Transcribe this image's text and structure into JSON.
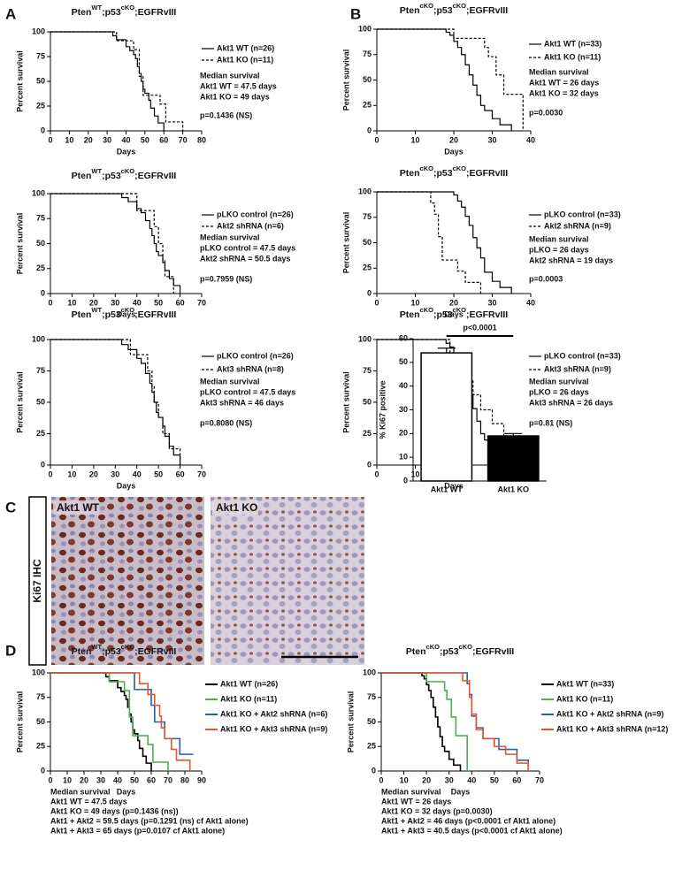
{
  "panels": [
    "A",
    "B",
    "C",
    "D"
  ],
  "images": {
    "stain": "Ki67 IHC",
    "labels": [
      "Akt1 WT",
      "Akt1 KO"
    ]
  },
  "chart_data": [
    {
      "type": "survival",
      "title_parts": [
        "Pten",
        "WT",
        ";p53",
        "cKO",
        ";EGFRvIII"
      ],
      "xlabel": "Days",
      "ylabel": "Percent survival",
      "xlim": [
        0,
        80
      ],
      "xticks": [
        0,
        10,
        20,
        30,
        40,
        50,
        60,
        70,
        80
      ],
      "ylim": [
        0,
        100
      ],
      "yticks": [
        0,
        25,
        50,
        75,
        100
      ],
      "series": [
        {
          "name": "Akt1 WT (n=26)",
          "color": "#000000",
          "dash": false,
          "x": [
            0,
            33,
            35,
            40,
            42,
            44,
            45,
            46,
            47,
            48,
            49,
            50,
            52,
            53,
            55,
            57,
            60
          ],
          "values": [
            100,
            96,
            92,
            85,
            81,
            77,
            73,
            65,
            58,
            50,
            42,
            38,
            31,
            23,
            15,
            8,
            0
          ]
        },
        {
          "name": "Akt1 KO (n=11)",
          "color": "#000000",
          "dash": true,
          "x": [
            0,
            35,
            44,
            47,
            49,
            58,
            61,
            70
          ],
          "values": [
            100,
            91,
            82,
            55,
            36,
            27,
            9,
            0
          ]
        }
      ],
      "annotations": [
        "Median survival",
        "Akt1 WT = 47.5 days",
        "Akt1 KO = 49 days"
      ],
      "p_value": "p=0.1436 (NS)"
    },
    {
      "type": "survival",
      "title_parts": [
        "Pten",
        "WT",
        ";p53",
        "cKO",
        ";EGFRvIII"
      ],
      "xlabel": "Days",
      "ylabel": "Percent survival",
      "xlim": [
        0,
        70
      ],
      "xticks": [
        0,
        10,
        20,
        30,
        40,
        50,
        60,
        70
      ],
      "ylim": [
        0,
        100
      ],
      "yticks": [
        0,
        25,
        50,
        75,
        100
      ],
      "series": [
        {
          "name": "pLKO control (n=26)",
          "color": "#000000",
          "dash": false,
          "x": [
            0,
            33,
            36,
            40,
            42,
            44,
            46,
            47,
            48,
            49,
            50,
            52,
            53,
            55,
            57,
            60
          ],
          "values": [
            100,
            96,
            92,
            85,
            81,
            73,
            65,
            58,
            50,
            42,
            38,
            31,
            23,
            15,
            8,
            0
          ]
        },
        {
          "name": "Akt2 shRNA (n=6)",
          "color": "#000000",
          "dash": true,
          "x": [
            0,
            40,
            48,
            50,
            52,
            53,
            55,
            57
          ],
          "values": [
            100,
            83,
            67,
            50,
            33,
            17,
            17,
            0
          ]
        }
      ],
      "annotations": [
        "Median survival",
        "pLKO control = 47.5 days",
        "Akt2 shRNA = 50.5 days"
      ],
      "p_value": "p=0.7959 (NS)"
    },
    {
      "type": "survival",
      "title_parts": [
        "Pten",
        "WT",
        ";p53",
        "cKO",
        ";EGFRvIII"
      ],
      "xlabel": "Days",
      "ylabel": "Percent survival",
      "xlim": [
        0,
        70
      ],
      "xticks": [
        0,
        10,
        20,
        30,
        40,
        50,
        60,
        70
      ],
      "ylim": [
        0,
        100
      ],
      "yticks": [
        0,
        25,
        50,
        75,
        100
      ],
      "series": [
        {
          "name": "pLKO control (n=26)",
          "color": "#000000",
          "dash": false,
          "x": [
            0,
            33,
            36,
            40,
            42,
            44,
            46,
            47,
            48,
            49,
            50,
            52,
            53,
            55,
            57,
            60
          ],
          "values": [
            100,
            96,
            92,
            85,
            81,
            73,
            65,
            58,
            50,
            42,
            38,
            31,
            23,
            15,
            8,
            0
          ]
        },
        {
          "name": "Akt3 shRNA (n=8)",
          "color": "#000000",
          "dash": true,
          "x": [
            0,
            37,
            45,
            47,
            48,
            50,
            52,
            55,
            60
          ],
          "values": [
            100,
            88,
            75,
            63,
            50,
            38,
            25,
            13,
            0
          ]
        }
      ],
      "annotations": [
        "Median survival",
        "pLKO control = 47.5 days",
        "Akt3 shRNA = 46 days"
      ],
      "p_value": "p=0.8080 (NS)"
    },
    {
      "type": "survival",
      "title_parts": [
        "Pten",
        "cKO",
        ";p53",
        "cKO",
        ";EGFRvIII"
      ],
      "xlabel": "Days",
      "ylabel": "Percent survival",
      "xlim": [
        0,
        40
      ],
      "xticks": [
        0,
        10,
        20,
        30,
        40
      ],
      "ylim": [
        0,
        100
      ],
      "yticks": [
        0,
        25,
        50,
        75,
        100
      ],
      "series": [
        {
          "name": "Akt1 WT (n=33)",
          "color": "#000000",
          "dash": false,
          "x": [
            0,
            18,
            19,
            20,
            21,
            22,
            23,
            24,
            25,
            26,
            27,
            28,
            30,
            32,
            35
          ],
          "values": [
            100,
            97,
            94,
            88,
            82,
            75,
            65,
            55,
            45,
            35,
            25,
            20,
            12,
            6,
            0
          ]
        },
        {
          "name": "Akt1 KO (n=11)",
          "color": "#000000",
          "dash": true,
          "x": [
            0,
            20,
            28,
            29,
            31,
            33,
            38
          ],
          "values": [
            100,
            91,
            82,
            73,
            55,
            36,
            0
          ]
        }
      ],
      "annotations": [
        "Median survival",
        "Akt1 WT = 26 days",
        "Akt1 KO = 32 days"
      ],
      "p_value": "p=0.0030"
    },
    {
      "type": "survival",
      "title_parts": [
        "Pten",
        "cKO",
        ";p53",
        "cKO",
        ";EGFRvIII"
      ],
      "xlabel": "Days",
      "ylabel": "Percent survival",
      "xlim": [
        0,
        40
      ],
      "xticks": [
        0,
        10,
        20,
        30,
        40
      ],
      "ylim": [
        0,
        100
      ],
      "yticks": [
        0,
        25,
        50,
        75,
        100
      ],
      "series": [
        {
          "name": "pLKO control (n=33)",
          "color": "#000000",
          "dash": false,
          "x": [
            0,
            20,
            21,
            22,
            23,
            24,
            25,
            26,
            27,
            28,
            30,
            32,
            35
          ],
          "values": [
            100,
            97,
            91,
            85,
            76,
            67,
            55,
            45,
            35,
            21,
            12,
            6,
            0
          ]
        },
        {
          "name": "Akt2 shRNA (n=9)",
          "color": "#000000",
          "dash": true,
          "x": [
            0,
            14,
            15,
            16,
            17,
            21,
            23,
            27
          ],
          "values": [
            100,
            89,
            78,
            56,
            33,
            22,
            11,
            0
          ]
        }
      ],
      "annotations": [
        "Median survival",
        "pLKO = 26 days",
        "Akt2 shRNA = 19 days"
      ],
      "p_value": "p=0.0003"
    },
    {
      "type": "survival",
      "title_parts": [
        "Pten",
        "cKO",
        ";p53",
        "cKO",
        ";EGFRvIII"
      ],
      "xlabel": "Days",
      "ylabel": "Percent survival",
      "xlim": [
        0,
        40
      ],
      "xticks": [
        0,
        10,
        20,
        30,
        40
      ],
      "ylim": [
        0,
        100
      ],
      "yticks": [
        0,
        25,
        50,
        75,
        100
      ],
      "series": [
        {
          "name": "pLKO control (n=33)",
          "color": "#000000",
          "dash": false,
          "x": [
            0,
            18,
            19,
            20,
            21,
            22,
            23,
            24,
            25,
            26,
            27,
            28,
            30,
            32,
            35
          ],
          "values": [
            100,
            97,
            94,
            88,
            82,
            75,
            65,
            55,
            45,
            35,
            25,
            20,
            12,
            6,
            0
          ]
        },
        {
          "name": "Akt3 shRNA (n=9)",
          "color": "#000000",
          "dash": true,
          "x": [
            0,
            19,
            21,
            24,
            25,
            27,
            30,
            33,
            34
          ],
          "values": [
            100,
            89,
            78,
            67,
            56,
            44,
            33,
            22,
            0
          ]
        }
      ],
      "annotations": [
        "Median survival",
        "pLKO = 26 days",
        "Akt3 shRNA = 26 days"
      ],
      "p_value": "p=0.81 (NS)"
    },
    {
      "type": "bar",
      "ylabel": "% Ki67 positive",
      "categories": [
        "Akt1 WT",
        "Akt1 KO"
      ],
      "values": [
        54,
        19
      ],
      "errors": [
        2,
        1
      ],
      "colors": [
        "#ffffff",
        "#000000"
      ],
      "ylim": [
        0,
        60
      ],
      "yticks": [
        0,
        10,
        20,
        30,
        40,
        50,
        60
      ],
      "annotation": "p<0.0001"
    },
    {
      "type": "survival",
      "title_parts": [
        "Pten",
        "WT",
        ";p53",
        "cKO",
        ";EGFRvIII"
      ],
      "xlabel": "Days",
      "ylabel": "Percent survival",
      "xlim": [
        0,
        90
      ],
      "xticks": [
        0,
        10,
        20,
        30,
        40,
        50,
        60,
        70,
        80,
        90
      ],
      "ylim": [
        0,
        100
      ],
      "yticks": [
        0,
        25,
        50,
        75,
        100
      ],
      "series": [
        {
          "name": "Akt1 WT (n=26)",
          "color": "#000000",
          "dash": false,
          "x": [
            0,
            33,
            35,
            40,
            42,
            44,
            45,
            46,
            47,
            48,
            49,
            50,
            52,
            53,
            55,
            57,
            60
          ],
          "values": [
            100,
            96,
            92,
            85,
            81,
            77,
            73,
            65,
            58,
            50,
            42,
            38,
            31,
            23,
            15,
            8,
            0
          ]
        },
        {
          "name": "Akt1 KO (n=11)",
          "color": "#4caf50",
          "dash": false,
          "x": [
            0,
            35,
            44,
            47,
            49,
            58,
            61,
            70
          ],
          "values": [
            100,
            91,
            82,
            55,
            36,
            27,
            9,
            0
          ]
        },
        {
          "name": "Akt1 KO + Akt2 shRNA (n=6)",
          "color": "#2a5db0",
          "dash": false,
          "x": [
            0,
            50,
            60,
            62,
            68,
            77,
            85
          ],
          "values": [
            100,
            83,
            67,
            50,
            33,
            17,
            17
          ]
        },
        {
          "name": "Akt1 KO + Akt3 shRNA (n=9)",
          "color": "#e8542b",
          "dash": false,
          "x": [
            0,
            53,
            58,
            62,
            65,
            66,
            68,
            72,
            75,
            83
          ],
          "values": [
            100,
            89,
            78,
            67,
            56,
            44,
            33,
            22,
            11,
            0
          ]
        }
      ],
      "annotations": [
        "Median survival",
        "Akt1 WT = 47.5 days",
        "Akt1 KO = 49 days (p=0.1436 (ns))",
        "Akt1 + Akt2 = 59.5 days (p=0.1291 (ns) cf Akt1 alone)",
        "Akt1 + Akt3 = 65 days (p=0.0107 cf Akt1 alone)"
      ]
    },
    {
      "type": "survival",
      "title_parts": [
        "Pten",
        "cKO",
        ";p53",
        "cKO",
        ";EGFRvIII"
      ],
      "xlabel": "Days",
      "ylabel": "Percent survival",
      "xlim": [
        0,
        70
      ],
      "xticks": [
        0,
        10,
        20,
        30,
        40,
        50,
        60,
        70
      ],
      "ylim": [
        0,
        100
      ],
      "yticks": [
        0,
        25,
        50,
        75,
        100
      ],
      "series": [
        {
          "name": "Akt1 WT (n=33)",
          "color": "#000000",
          "dash": false,
          "x": [
            0,
            18,
            19,
            20,
            21,
            22,
            23,
            24,
            25,
            26,
            27,
            28,
            30,
            32,
            35
          ],
          "values": [
            100,
            97,
            94,
            88,
            82,
            75,
            65,
            55,
            45,
            35,
            25,
            20,
            12,
            6,
            0
          ]
        },
        {
          "name": "Akt1 KO (n=11)",
          "color": "#4caf50",
          "dash": false,
          "x": [
            0,
            20,
            28,
            29,
            31,
            33,
            38
          ],
          "values": [
            100,
            91,
            82,
            73,
            55,
            36,
            0
          ]
        },
        {
          "name": "Akt1 KO + Akt2 shRNA (n=9)",
          "color": "#2a5db0",
          "dash": false,
          "x": [
            0,
            38,
            39,
            40,
            42,
            45,
            52,
            60,
            65
          ],
          "values": [
            100,
            89,
            78,
            56,
            44,
            33,
            22,
            11,
            0
          ]
        },
        {
          "name": "Akt1 KO + Akt3 shRNA (n=12)",
          "color": "#e8542b",
          "dash": false,
          "x": [
            0,
            36,
            39,
            40,
            42,
            45,
            50,
            55,
            60,
            65
          ],
          "values": [
            100,
            92,
            75,
            58,
            42,
            33,
            25,
            17,
            8,
            0
          ]
        }
      ],
      "annotations": [
        "Median survival",
        "Akt1 WT = 26 days",
        "Akt1 KO = 32 days (p=0.0030)",
        "Akt1 + Akt2 = 46 days (p<0.0001 cf Akt1 alone)",
        "Akt1 + Akt3 = 40.5 days (p<0.0001 cf Akt1 alone)"
      ]
    }
  ]
}
